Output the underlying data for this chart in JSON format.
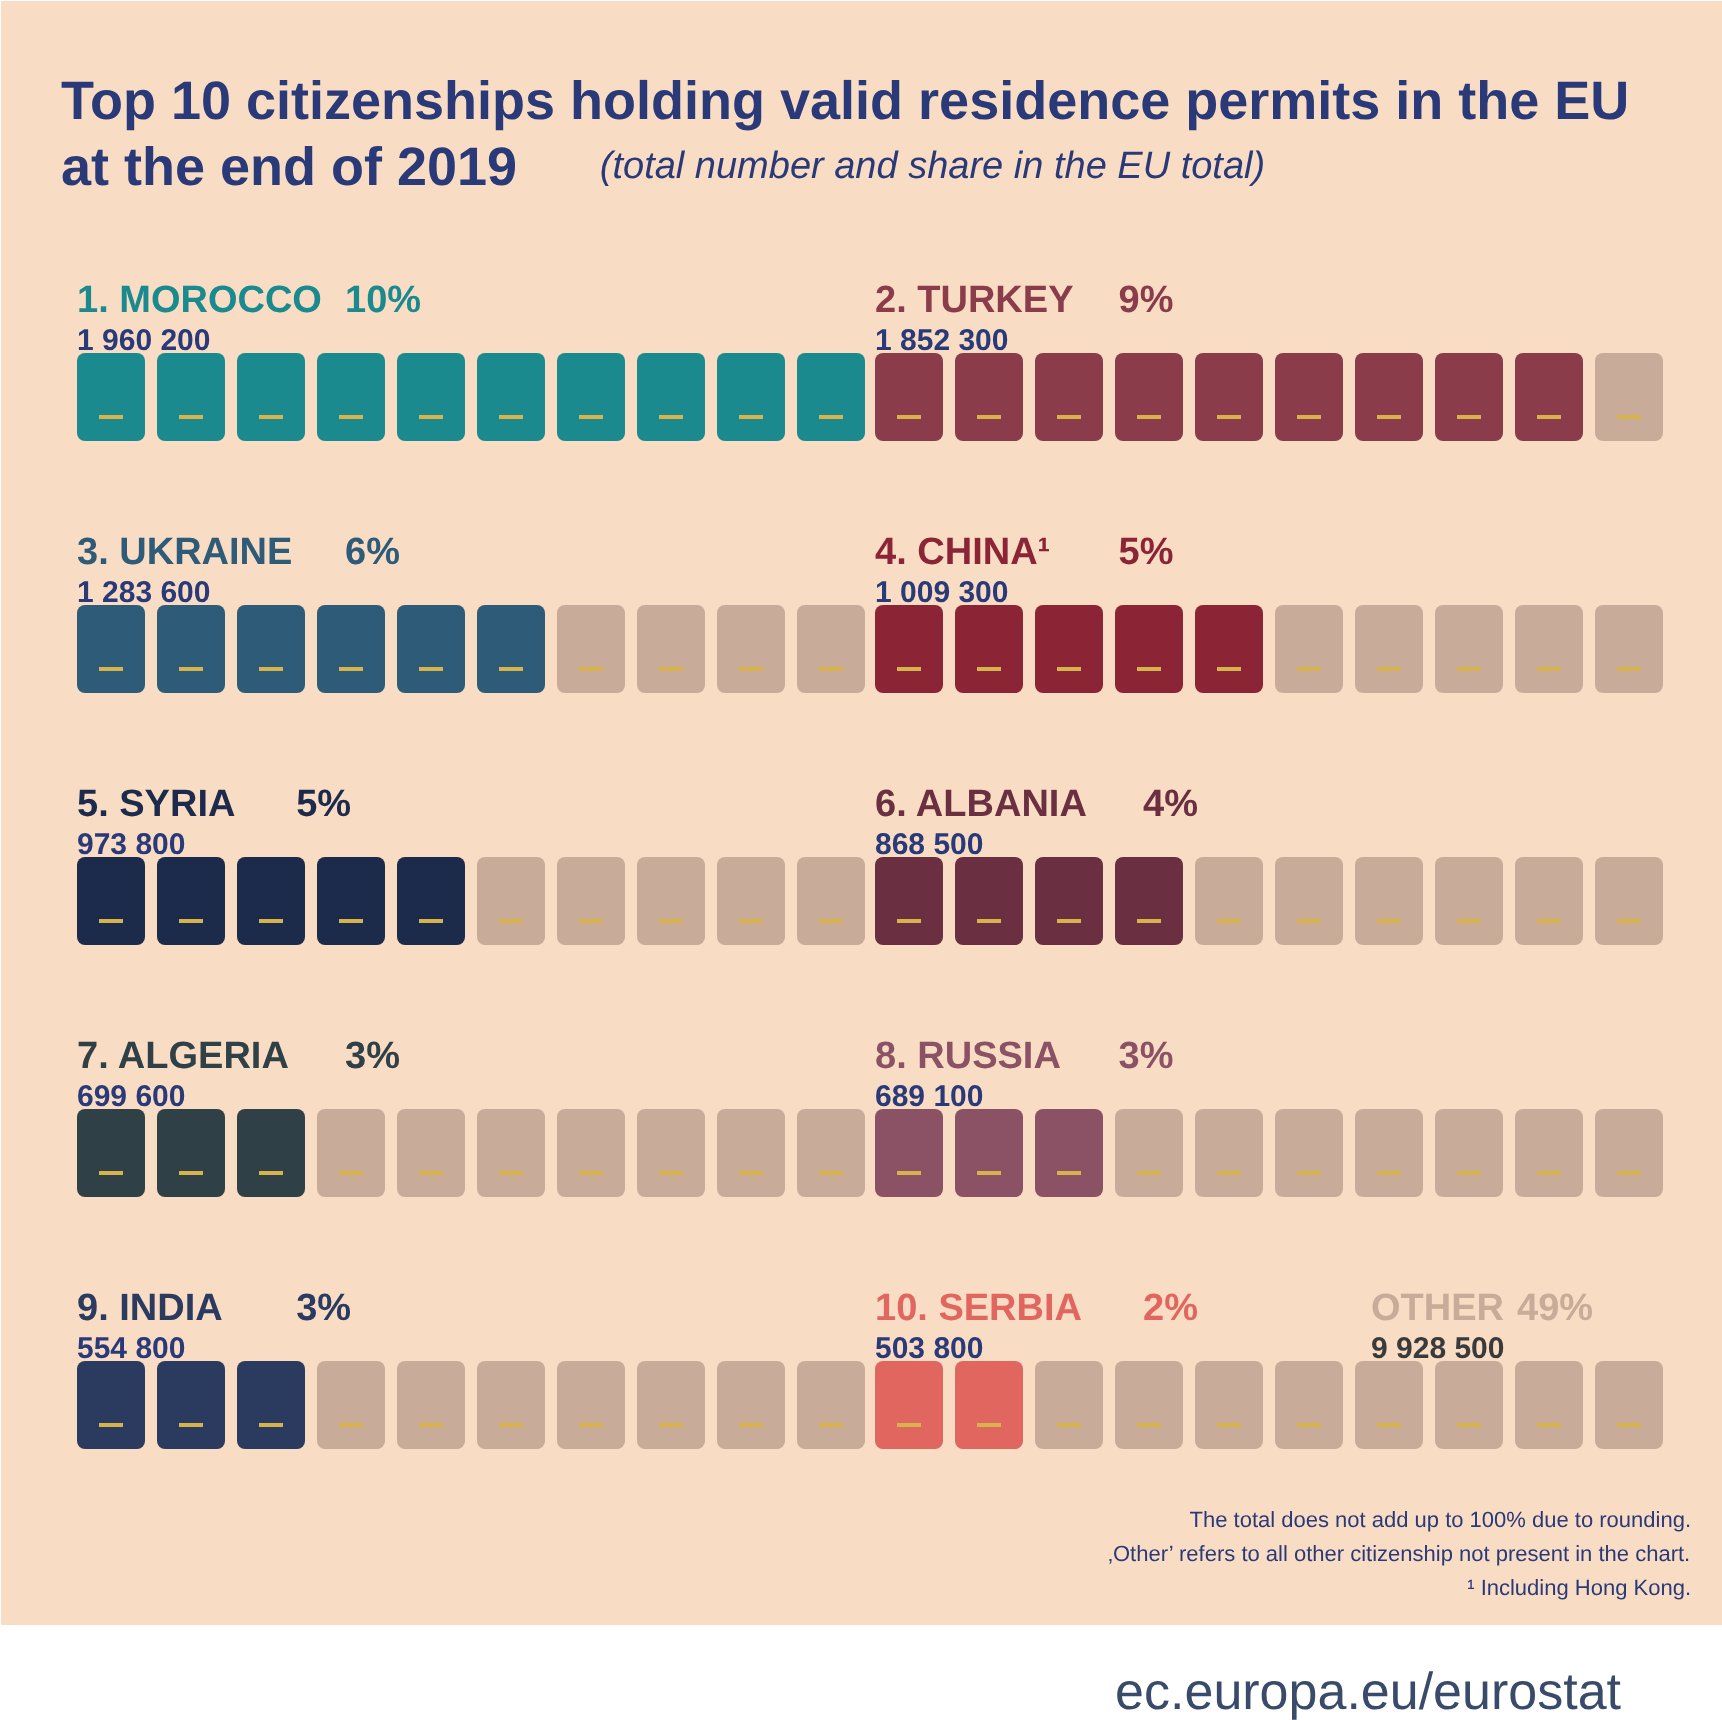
{
  "chart_data": {
    "type": "other",
    "title": "Top 10 citizenships holding valid residence permits in the EU at the end of 2019",
    "subtitle": "(total number and share in the EU total)",
    "categories": [
      "1. MOROCCO",
      "2. TURKEY",
      "3. UKRAINE",
      "4. CHINA¹",
      "5. SYRIA",
      "6. ALBANIA",
      "7. ALGERIA",
      "8. RUSSIA",
      "9. INDIA",
      "10. SERBIA",
      "OTHER"
    ],
    "series": [
      {
        "values": [
          1960200,
          1852300,
          1283600,
          1009300,
          973800,
          868500,
          699600,
          689100,
          554800,
          503800,
          9928500
        ],
        "value_labels": [
          "1 960 200",
          "1 852 300",
          "1 283 600",
          "1 009 300",
          "973 800",
          "868 500",
          "699 600",
          "689 100",
          "554 800",
          "503 800",
          "9 928 500"
        ]
      },
      {
        "values": [
          10,
          9,
          6,
          5,
          5,
          4,
          3,
          3,
          3,
          2,
          49
        ],
        "value_labels": [
          "10%",
          "9%",
          "6%",
          "5%",
          "5%",
          "4%",
          "3%",
          "3%",
          "3%",
          "2%",
          "49%"
        ]
      }
    ],
    "colors": [
      "#1a8a8f",
      "#8a3c4a",
      "#2d5b78",
      "#8b2536",
      "#1c2b4c",
      "#6a2f41",
      "#2f4147",
      "#8a5264",
      "#2b3b60",
      "#e0665f",
      "#c8ab98"
    ],
    "data_labels": true,
    "annotations": [
      "The total does not add up to 100% due to rounding.",
      "‚Other’ refers to all other citizenship not present in the chart.",
      "¹ Including Hong Kong.",
      "ec.europa.eu/eurostat"
    ]
  }
}
